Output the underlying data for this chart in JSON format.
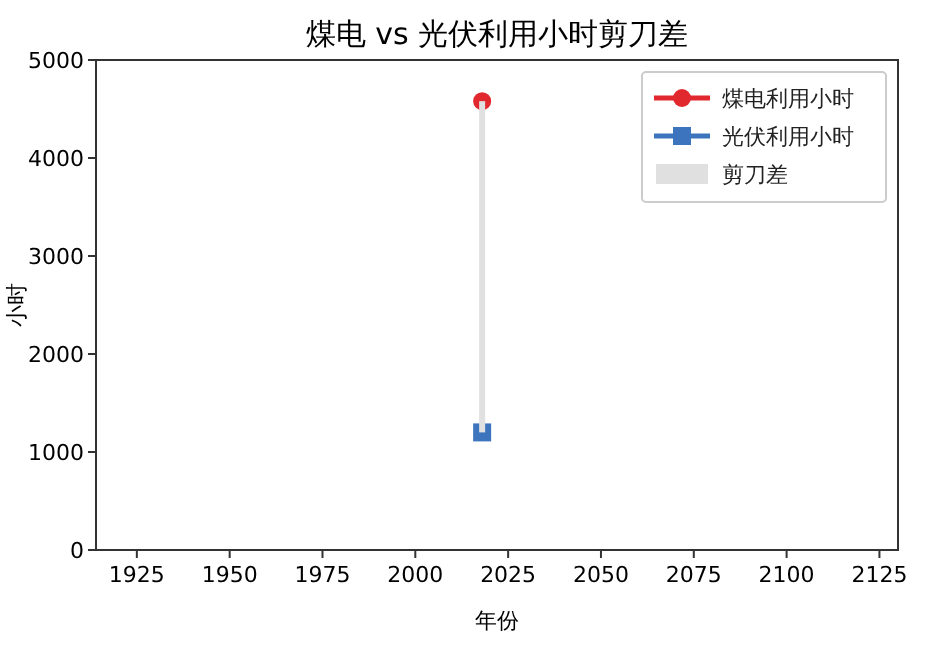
{
  "chart_data": {
    "type": "line",
    "title": "煤电 vs 光伏利用小时剪刀差",
    "xlabel": "年份",
    "ylabel": "小时",
    "x": [
      2018
    ],
    "series": [
      {
        "name": "煤电利用小时",
        "color": "#e0282e",
        "values": [
          4580
        ],
        "marker": "circle"
      },
      {
        "name": "光伏利用小时",
        "color": "#3c74bd",
        "values": [
          1200
        ],
        "marker": "square"
      },
      {
        "name": "剪刀差",
        "type": "bar",
        "color": "#e0e0e0",
        "base": [
          1200
        ],
        "values": [
          3380
        ]
      }
    ],
    "xlim": [
      1914,
      2130
    ],
    "xticks": [
      1925,
      1950,
      1975,
      2000,
      2025,
      2050,
      2075,
      2100,
      2125
    ],
    "ylim": [
      0,
      5000
    ],
    "yticks": [
      0,
      1000,
      2000,
      3000,
      4000,
      5000
    ],
    "legend": "top right",
    "grid": false
  }
}
